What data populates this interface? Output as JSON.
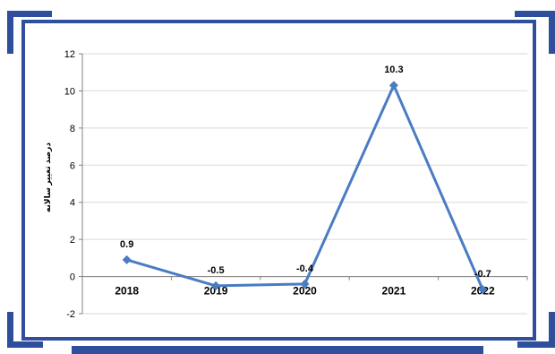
{
  "colors": {
    "frame": "#2f4f9c",
    "line": "#4a7cc3",
    "grid": "#d9d9d9",
    "axis": "#808080"
  },
  "chart_data": {
    "type": "line",
    "title": "",
    "xlabel": "",
    "ylabel": "درصد تغییر سالانه",
    "categories": [
      "2018",
      "2019",
      "2020",
      "2021",
      "2022"
    ],
    "series": [
      {
        "values": [
          0.9,
          -0.5,
          -0.4,
          10.3,
          -0.7
        ],
        "labels": [
          "0.9",
          "-0.5",
          "-0.4",
          "10.3",
          "-0.7"
        ]
      }
    ],
    "ylim": [
      -2,
      12
    ],
    "yticks": [
      12,
      10,
      8,
      6,
      4,
      2,
      0,
      -2
    ],
    "grid": true,
    "legend": "none",
    "marker": "diamond"
  }
}
